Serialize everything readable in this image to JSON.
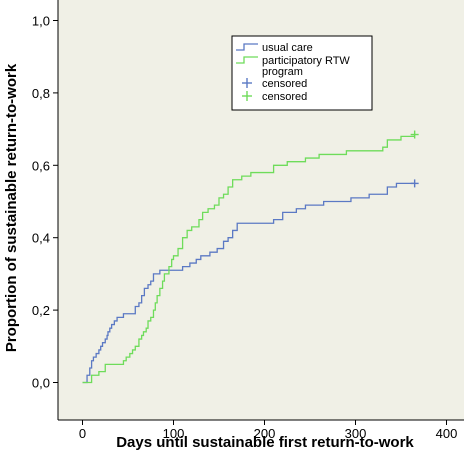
{
  "chart_data": {
    "type": "line",
    "title": "",
    "xlabel": "Days until sustainable first return-to-work",
    "ylabel": "Proportion of sustainable return-to-work",
    "xlim": [
      -15,
      415
    ],
    "ylim": [
      -0.03,
      1.03
    ],
    "x_ticks": [
      0,
      100,
      200,
      300,
      400
    ],
    "y_ticks": [
      0.0,
      0.2,
      0.4,
      0.6,
      0.8,
      1.0
    ],
    "x_tick_labels": [
      "0",
      "100",
      "200",
      "300",
      "400"
    ],
    "y_tick_labels": [
      "0,0",
      "0,2",
      "0,4",
      "0,6",
      "0,8",
      "1,0"
    ],
    "plot_background": "#f0f0e6",
    "grid": false,
    "legend_position": "top-right",
    "series": [
      {
        "name": "usual care",
        "color": "#5b79c4",
        "step_points": [
          [
            0,
            0.0
          ],
          [
            5,
            0.02
          ],
          [
            8,
            0.04
          ],
          [
            10,
            0.06
          ],
          [
            12,
            0.07
          ],
          [
            15,
            0.08
          ],
          [
            18,
            0.09
          ],
          [
            20,
            0.1
          ],
          [
            22,
            0.11
          ],
          [
            25,
            0.12
          ],
          [
            27,
            0.13
          ],
          [
            28,
            0.14
          ],
          [
            30,
            0.15
          ],
          [
            32,
            0.16
          ],
          [
            35,
            0.17
          ],
          [
            38,
            0.18
          ],
          [
            45,
            0.19
          ],
          [
            58,
            0.21
          ],
          [
            62,
            0.22
          ],
          [
            65,
            0.24
          ],
          [
            68,
            0.26
          ],
          [
            72,
            0.27
          ],
          [
            75,
            0.28
          ],
          [
            78,
            0.3
          ],
          [
            85,
            0.31
          ],
          [
            110,
            0.32
          ],
          [
            118,
            0.33
          ],
          [
            125,
            0.34
          ],
          [
            130,
            0.35
          ],
          [
            140,
            0.36
          ],
          [
            148,
            0.37
          ],
          [
            155,
            0.39
          ],
          [
            160,
            0.4
          ],
          [
            165,
            0.42
          ],
          [
            170,
            0.44
          ],
          [
            210,
            0.45
          ],
          [
            220,
            0.47
          ],
          [
            235,
            0.48
          ],
          [
            245,
            0.49
          ],
          [
            265,
            0.5
          ],
          [
            295,
            0.51
          ],
          [
            315,
            0.52
          ],
          [
            335,
            0.54
          ],
          [
            345,
            0.55
          ],
          [
            365,
            0.55
          ]
        ],
        "censored_x": 365,
        "censored_y": 0.55
      },
      {
        "name": "participatory RTW program",
        "color": "#6edc5a",
        "step_points": [
          [
            0,
            0.0
          ],
          [
            10,
            0.02
          ],
          [
            18,
            0.03
          ],
          [
            25,
            0.05
          ],
          [
            45,
            0.06
          ],
          [
            48,
            0.07
          ],
          [
            52,
            0.08
          ],
          [
            55,
            0.09
          ],
          [
            58,
            0.1
          ],
          [
            62,
            0.12
          ],
          [
            65,
            0.13
          ],
          [
            67,
            0.14
          ],
          [
            70,
            0.15
          ],
          [
            72,
            0.17
          ],
          [
            75,
            0.18
          ],
          [
            78,
            0.2
          ],
          [
            80,
            0.22
          ],
          [
            82,
            0.24
          ],
          [
            85,
            0.26
          ],
          [
            88,
            0.28
          ],
          [
            90,
            0.3
          ],
          [
            95,
            0.32
          ],
          [
            98,
            0.34
          ],
          [
            100,
            0.35
          ],
          [
            105,
            0.37
          ],
          [
            110,
            0.4
          ],
          [
            115,
            0.42
          ],
          [
            120,
            0.43
          ],
          [
            128,
            0.45
          ],
          [
            132,
            0.47
          ],
          [
            138,
            0.48
          ],
          [
            145,
            0.49
          ],
          [
            150,
            0.51
          ],
          [
            155,
            0.52
          ],
          [
            160,
            0.54
          ],
          [
            165,
            0.56
          ],
          [
            175,
            0.57
          ],
          [
            185,
            0.58
          ],
          [
            210,
            0.6
          ],
          [
            225,
            0.61
          ],
          [
            245,
            0.62
          ],
          [
            260,
            0.63
          ],
          [
            290,
            0.64
          ],
          [
            330,
            0.65
          ],
          [
            335,
            0.67
          ],
          [
            350,
            0.68
          ],
          [
            365,
            0.68
          ]
        ],
        "censored_x": 365,
        "censored_y": 0.685
      }
    ],
    "legend": {
      "entries": [
        {
          "label": "usual care",
          "color": "#5b79c4",
          "marker": "line"
        },
        {
          "label_lines": [
            "participatory RTW",
            "program"
          ],
          "color": "#6edc5a",
          "marker": "line"
        },
        {
          "label": "censored",
          "color": "#5b79c4",
          "marker": "plus"
        },
        {
          "label": "censored",
          "color": "#6edc5a",
          "marker": "plus"
        }
      ]
    }
  }
}
